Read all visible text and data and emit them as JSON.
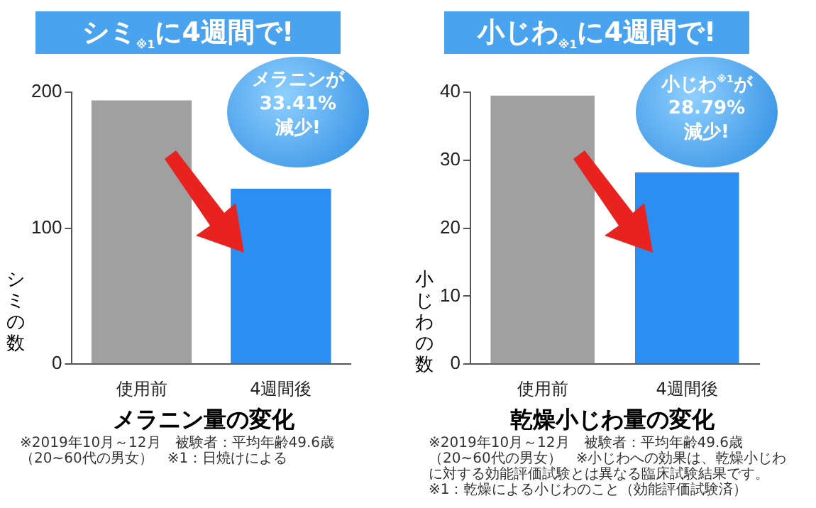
{
  "chart_data": [
    {
      "type": "bar",
      "title": "シミ$_{※1}$に4週間で!",
      "xlabel": "メラニン量の変化",
      "ylabel": "シミの数",
      "categories": [
        "使用前",
        "4週間後"
      ],
      "values": [
        194,
        129
      ],
      "colors": [
        "#a0a0a0",
        "#2b8ef0"
      ],
      "ylim": [
        0,
        200
      ],
      "yticks": [
        0,
        100,
        200
      ],
      "annotations": [
        "メラニンが\n33.41%\n減少!",
        "※2019年10月～12月　被験者：平均年齢49.6歳（20~60代の男女）　※1：日焼けによる"
      ]
    },
    {
      "type": "bar",
      "title": "小じわ$_{※1}$に4週間で!",
      "xlabel": "乾燥小じわ量の変化",
      "ylabel": "小じわの数",
      "categories": [
        "使用前",
        "4週間後"
      ],
      "values": [
        39.5,
        28.2
      ],
      "colors": [
        "#a0a0a0",
        "#2b8ef0"
      ],
      "ylim": [
        0,
        40
      ],
      "yticks": [
        0,
        10,
        20,
        30,
        40
      ],
      "annotations": [
        "小じわ$^{※1}$が\n28.79%\n減少!",
        "※2019年10月～12月　被験者：平均年齢49.6歳（20~60代の男女）　※小じわへの効果は、乾燥小じわに対する効能評価試験とは異なる臨床試験結果です。※1：乾燥による小じわのこと（効能評価試験済）"
      ]
    }
  ]
}
